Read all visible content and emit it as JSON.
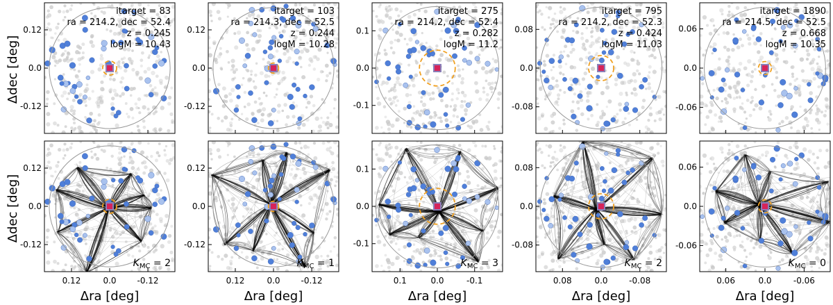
{
  "colors": {
    "target": "#d6245a",
    "target_edge": "#8a7fb8",
    "member": "#4f7fd9",
    "member_faint": "#a9c2ee",
    "background_galaxy": "#c8c8c8",
    "radius_circle": "#f0a020",
    "outer_circle": "#999999",
    "filament": "#000000"
  },
  "chart_data": {
    "type": "scatter",
    "layout": "2 rows x 5 columns of panels",
    "ylabel": "Δdec [deg]",
    "xlabel": "Δra [deg]",
    "rows": [
      "galaxy field",
      "galaxy field with Monte-Carlo filament network"
    ],
    "panels": [
      {
        "itarget_text": "itarget = 83",
        "coord_text": "ra = 214.2, dec = 52.4",
        "z_text": "z = 0.245",
        "logm_text": "logM = 10.43",
        "kmc_prefix": "K",
        "kmc_sub": "MC",
        "kmc_value": "= 2",
        "xticks": [
          0.12,
          0.0,
          -0.12
        ],
        "xtick_labels": [
          "0.12",
          "0.0",
          "-0.12"
        ],
        "yticks": [
          0.12,
          0.0,
          -0.12
        ],
        "ytick_labels": [
          "0.12",
          "0.0",
          "-0.12"
        ],
        "range": 0.205,
        "outer_radius": 0.19,
        "inner_radius": 0.022,
        "seed": 83
      },
      {
        "itarget_text": "itarget = 103",
        "coord_text": "ra = 214.3, dec = 52.5",
        "z_text": "z = 0.244",
        "logm_text": "logM = 10.28",
        "kmc_prefix": "K",
        "kmc_sub": "MC",
        "kmc_value": "= 1",
        "xticks": [
          0.12,
          0.0,
          -0.12
        ],
        "xtick_labels": [
          "0.12",
          "0.0",
          "-0.12"
        ],
        "yticks": [
          0.12,
          0.0,
          -0.12
        ],
        "ytick_labels": [
          "0.12",
          "0.0",
          "-0.12"
        ],
        "range": 0.205,
        "outer_radius": 0.19,
        "inner_radius": 0.016,
        "seed": 103
      },
      {
        "itarget_text": "itarget = 275",
        "coord_text": "ra = 214.2, dec = 52.4",
        "z_text": "z = 0.282",
        "logm_text": "logM = 11.2",
        "kmc_prefix": "K",
        "kmc_sub": "MC",
        "kmc_value": "= 3",
        "xticks": [
          0.1,
          0.0,
          -0.1
        ],
        "xtick_labels": [
          "0.1",
          "0.0",
          "-0.1"
        ],
        "yticks": [
          0.1,
          0.0,
          -0.1
        ],
        "ytick_labels": [
          "0.1",
          "0.0",
          "-0.1"
        ],
        "range": 0.175,
        "outer_radius": 0.165,
        "inner_radius": 0.048,
        "seed": 275
      },
      {
        "itarget_text": "itarget = 795",
        "coord_text": "ra = 214.2, dec = 52.3",
        "z_text": "z = 0.424",
        "logm_text": "logM = 11.03",
        "kmc_prefix": "K",
        "kmc_sub": "MC",
        "kmc_value": "= 2",
        "xticks": [
          0.08,
          0.0,
          -0.08
        ],
        "xtick_labels": [
          "0.08",
          "0.0",
          "-0.08"
        ],
        "yticks": [
          0.08,
          0.0,
          -0.08
        ],
        "ytick_labels": [
          "0.08",
          "0.0",
          "-0.08"
        ],
        "range": 0.135,
        "outer_radius": 0.126,
        "inner_radius": 0.026,
        "seed": 795
      },
      {
        "itarget_text": "itarget = 1890",
        "coord_text": "ra = 214.5, dec = 52.5",
        "z_text": "z = 0.668",
        "logm_text": "logM = 10.35",
        "kmc_prefix": "K",
        "kmc_sub": "MC",
        "kmc_value": "= 0",
        "xticks": [
          0.06,
          0.0,
          -0.06
        ],
        "xtick_labels": [
          "0.06",
          "0.0",
          "-0.06"
        ],
        "yticks": [
          0.06,
          0.0,
          -0.06
        ],
        "ytick_labels": [
          "0.06",
          "0.0",
          "-0.06"
        ],
        "range": 0.1,
        "outer_radius": 0.093,
        "inner_radius": 0.01,
        "seed": 1890
      }
    ]
  }
}
